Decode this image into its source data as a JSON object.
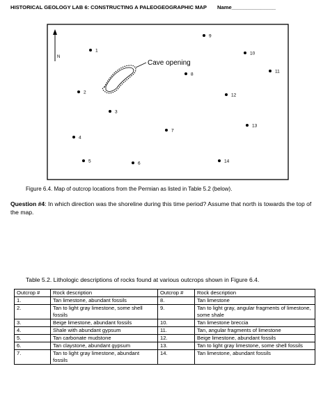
{
  "header": {
    "title": "HISTORICAL GEOLOGY LAB 6: CONSTRUCTING A PALEOGEOGRAPHIC MAP",
    "name": "Name_______________"
  },
  "map": {
    "north": "N",
    "cave": "Cave opening",
    "points": [
      "1",
      "2",
      "3",
      "4",
      "5",
      "6",
      "7",
      "8",
      "9",
      "10",
      "11",
      "12",
      "13",
      "14"
    ]
  },
  "figure_caption": "Figure 6.4.  Map of outcrop locations from the Permian as listed in Table 5.2 (below).",
  "question": {
    "label": "Question #4",
    "text": ": In which direction was the shoreline during this time period?  Assume that north is towards the top of the map."
  },
  "table": {
    "caption": "Table 5.2. Lithologic descriptions of rocks found at various outcrops shown in Figure 6.4.",
    "headers": [
      "Outcrop #",
      "Rock description",
      "Outcrop #",
      "Rock description"
    ],
    "rows": [
      [
        "1.",
        "Tan limestone, abundant fossils",
        "8.",
        "Tan limestone"
      ],
      [
        "2.",
        "Tan to light gray limestone, some shell fossils",
        "9.",
        "Tan to light gray, angular fragments of limestone, some shale"
      ],
      [
        "3.",
        "Beige limestone, abundant fossils",
        "10.",
        "Tan limestone breccia"
      ],
      [
        "4.",
        "Shale with abundant gypsum",
        "11.",
        "Tan, angular fragments of limestone"
      ],
      [
        "5.",
        "Tan carbonate mudstone",
        "12.",
        "Beige limestone, abundant fossils"
      ],
      [
        "6.",
        "Tan claystone, abundant gypsum",
        "13.",
        "Tan to light gray limestone, some shell fossils"
      ],
      [
        "7.",
        "Tan to light gray limestone, abundant fossils",
        "14.",
        "Tan limestone, abundant fossils"
      ]
    ]
  }
}
